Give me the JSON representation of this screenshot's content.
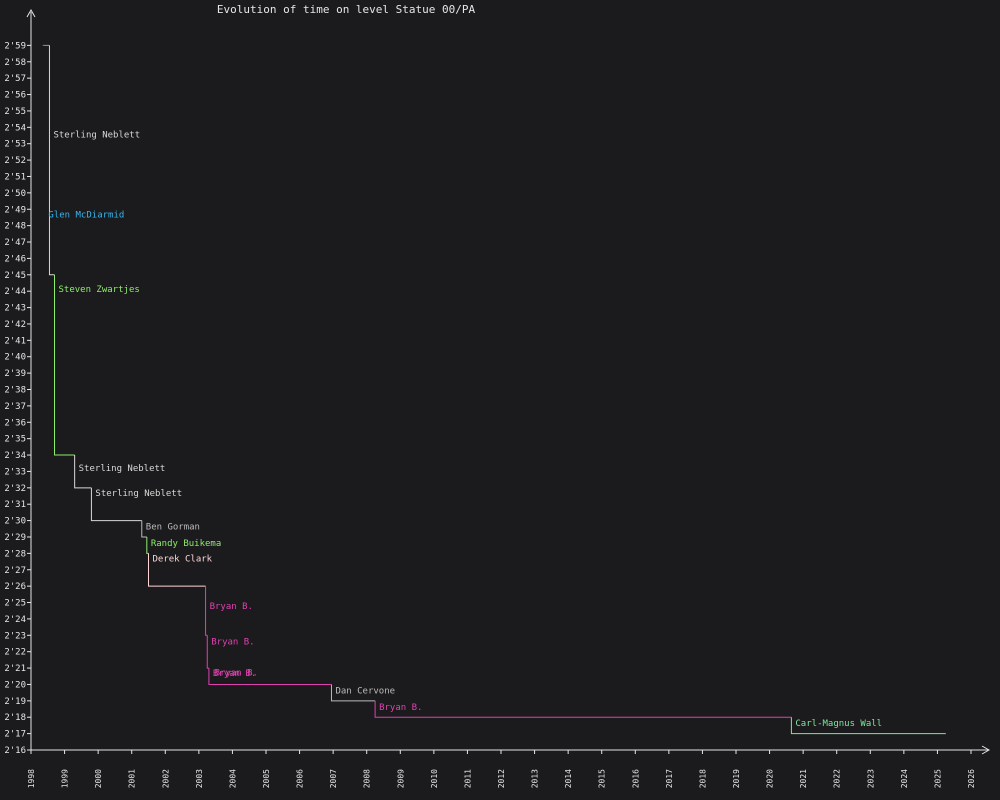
{
  "chart_data": {
    "type": "line",
    "step": true,
    "title": "Evolution of time on level Statue 00/PA",
    "xlabel": "",
    "ylabel": "",
    "xlim": [
      1998,
      2026
    ],
    "ylim_seconds": [
      136,
      180
    ],
    "x_ticks": [
      "1998",
      "1999",
      "2000",
      "2001",
      "2002",
      "2003",
      "2004",
      "2005",
      "2006",
      "2007",
      "2008",
      "2009",
      "2010",
      "2011",
      "2012",
      "2013",
      "2014",
      "2015",
      "2016",
      "2017",
      "2018",
      "2019",
      "2020",
      "2021",
      "2022",
      "2023",
      "2024",
      "2025",
      "2026"
    ],
    "y_ticks": [
      "2'16",
      "2'17",
      "2'18",
      "2'19",
      "2'20",
      "2'21",
      "2'22",
      "2'23",
      "2'24",
      "2'25",
      "2'26",
      "2'27",
      "2'28",
      "2'29",
      "2'30",
      "2'31",
      "2'32",
      "2'33",
      "2'34",
      "2'35",
      "2'36",
      "2'37",
      "2'38",
      "2'39",
      "2'40",
      "2'41",
      "2'42",
      "2'43",
      "2'44",
      "2'45",
      "2'46",
      "2'47",
      "2'48",
      "2'49",
      "2'50",
      "2'51",
      "2'52",
      "2'53",
      "2'54",
      "2'55",
      "2'56",
      "2'57",
      "2'58",
      "2'59"
    ],
    "grid": false,
    "legend": "none",
    "colors": {
      "background": "#1b1b1d",
      "axis": "#e6e6e6",
      "text": "#e6e6e6"
    },
    "records": [
      {
        "date": 1998.35,
        "seconds": 179,
        "player": "",
        "color": "#ff4f5a"
      },
      {
        "date": 1998.4,
        "seconds": 179,
        "player": "Glen McDiarmid",
        "color": "#36b6f0"
      },
      {
        "date": 1998.55,
        "seconds": 165,
        "player": "Sterling Neblett",
        "color": "#d8d8d8"
      },
      {
        "date": 1998.7,
        "seconds": 154,
        "player": "Steven Zwartjes",
        "color": "#8dee6a"
      },
      {
        "date": 1999.3,
        "seconds": 152,
        "player": "Sterling Neblett",
        "color": "#d8d8d8"
      },
      {
        "date": 1999.8,
        "seconds": 150,
        "player": "Sterling Neblett",
        "color": "#d8d8d8"
      },
      {
        "date": 2001.3,
        "seconds": 149,
        "player": "Ben Gorman",
        "color": "#bbbbbb"
      },
      {
        "date": 2001.45,
        "seconds": 148,
        "player": "Randy Buikema",
        "color": "#8dee6a"
      },
      {
        "date": 2001.5,
        "seconds": 146,
        "player": "Derek Clark",
        "color": "#ffd7d7"
      },
      {
        "date": 2003.2,
        "seconds": 143,
        "player": "Bryan B.",
        "color": "#e040b0"
      },
      {
        "date": 2003.25,
        "seconds": 141,
        "player": "Bryan B.",
        "color": "#e040b0"
      },
      {
        "date": 2003.3,
        "seconds": 140,
        "player": "Bryan B.",
        "color": "#e040b0"
      },
      {
        "date": 2003.35,
        "seconds": 140,
        "player": "Bryan B.",
        "color": "#e040b0"
      },
      {
        "date": 2006.95,
        "seconds": 139,
        "player": "Dan Cervone",
        "color": "#bbbbbb"
      },
      {
        "date": 2008.25,
        "seconds": 138,
        "player": "Bryan B.",
        "color": "#e040b0"
      },
      {
        "date": 2020.65,
        "seconds": 137,
        "player": "Carl-Magnus Wall",
        "color": "#7ee89a"
      }
    ],
    "end_date": 2025.25
  }
}
